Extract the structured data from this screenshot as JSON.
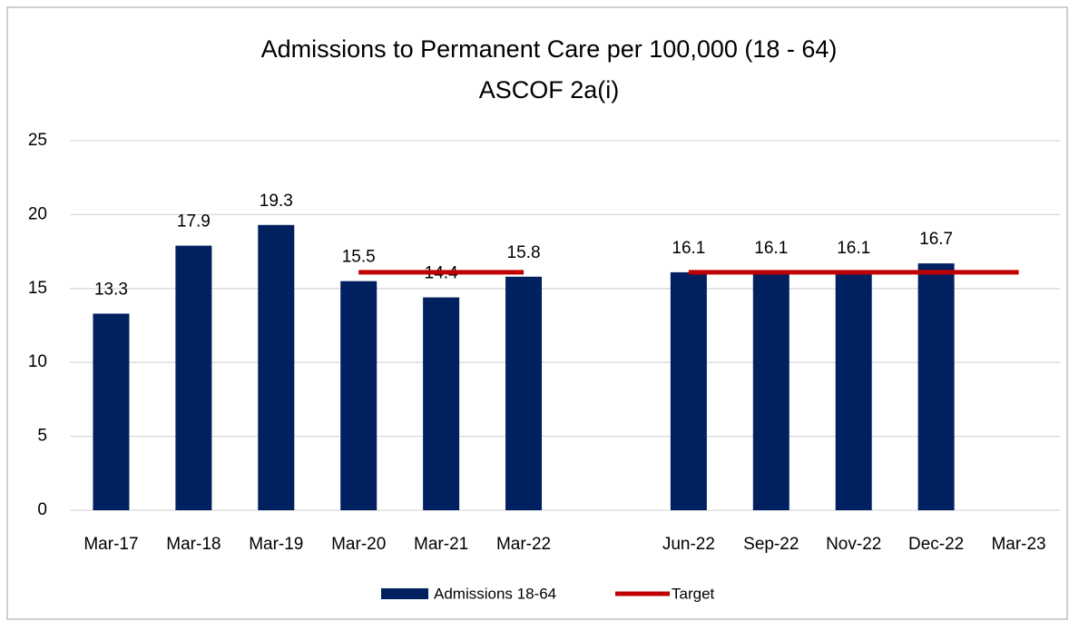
{
  "chart_data": {
    "type": "bar",
    "title": [
      "Admissions to Permanent Care per 100,000  (18 - 64)",
      "ASCOF 2a(i)"
    ],
    "categories": [
      "Mar-17",
      "Mar-18",
      "Mar-19",
      "Mar-20",
      "Mar-21",
      "Mar-22",
      null,
      "Jun-22",
      "Sep-22",
      "Nov-22",
      "Dec-22",
      "Mar-23"
    ],
    "series": [
      {
        "name": "Admissions 18-64",
        "type": "bar",
        "color": "#002060",
        "values": [
          13.3,
          17.9,
          19.3,
          15.5,
          14.4,
          15.8,
          null,
          16.1,
          16.1,
          16.1,
          16.7,
          null
        ]
      },
      {
        "name": "Target",
        "type": "line",
        "color": "#c00000",
        "values": [
          null,
          null,
          null,
          16.1,
          16.1,
          16.1,
          null,
          16.1,
          16.1,
          16.1,
          16.1,
          16.1
        ]
      }
    ],
    "ylim": [
      0,
      25
    ],
    "yticks": [
      0,
      5,
      10,
      15,
      20,
      25
    ],
    "grid": true,
    "legend": "bottom"
  }
}
